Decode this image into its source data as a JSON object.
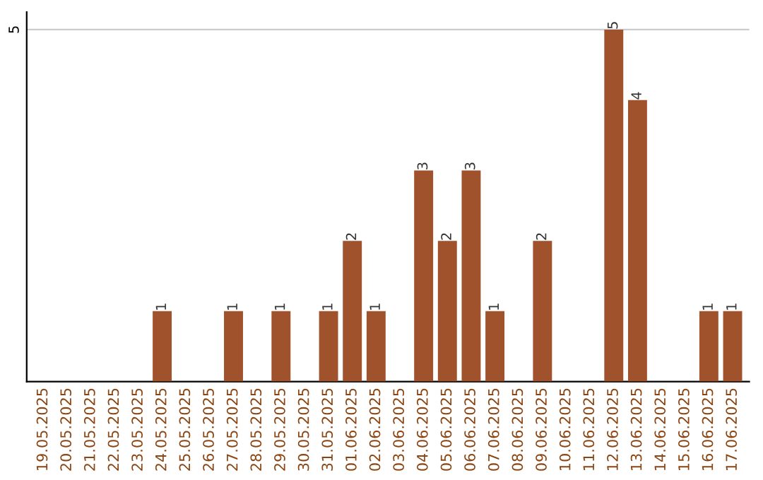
{
  "chart_data": {
    "type": "bar",
    "categories": [
      "19.05.2025",
      "20.05.2025",
      "21.05.2025",
      "22.05.2025",
      "23.05.2025",
      "24.05.2025",
      "25.05.2025",
      "26.05.2025",
      "27.05.2025",
      "28.05.2025",
      "29.05.2025",
      "30.05.2025",
      "31.05.2025",
      "01.06.2025",
      "02.06.2025",
      "03.06.2025",
      "04.06.2025",
      "05.06.2025",
      "06.06.2025",
      "07.06.2025",
      "08.06.2025",
      "09.06.2025",
      "10.06.2025",
      "11.06.2025",
      "12.06.2025",
      "13.06.2025",
      "14.06.2025",
      "15.06.2025",
      "16.06.2025",
      "17.06.2025"
    ],
    "values": [
      0,
      0,
      0,
      0,
      0,
      1,
      0,
      0,
      1,
      0,
      1,
      0,
      1,
      2,
      1,
      0,
      3,
      2,
      3,
      1,
      0,
      2,
      0,
      0,
      5,
      4,
      0,
      0,
      1,
      1
    ],
    "value_labels": [
      null,
      null,
      null,
      null,
      null,
      "1",
      null,
      null,
      "1",
      null,
      "1",
      null,
      "1",
      "2",
      "1",
      null,
      "3",
      "2",
      "3",
      "1",
      null,
      "2",
      null,
      null,
      "5",
      "4",
      null,
      null,
      "1",
      "1"
    ],
    "color": "#a0522d",
    "ylim": [
      0,
      5.25
    ],
    "yticks": [
      5
    ],
    "grid": "y",
    "legend": false
  }
}
